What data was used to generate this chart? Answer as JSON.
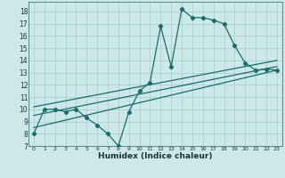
{
  "title": "",
  "xlabel": "Humidex (Indice chaleur)",
  "bg_color": "#cce8e8",
  "grid_color": "#b0d4d4",
  "line_color": "#1a6b6b",
  "xlim": [
    -0.5,
    23.5
  ],
  "ylim": [
    7,
    18.8
  ],
  "yticks": [
    7,
    8,
    9,
    10,
    11,
    12,
    13,
    14,
    15,
    16,
    17,
    18
  ],
  "xticks": [
    0,
    1,
    2,
    3,
    4,
    5,
    6,
    7,
    8,
    9,
    10,
    11,
    12,
    13,
    14,
    15,
    16,
    17,
    18,
    19,
    20,
    21,
    22,
    23
  ],
  "line1_x": [
    0,
    1,
    2,
    3,
    4,
    5,
    6,
    7,
    8,
    9,
    10,
    11,
    12,
    13,
    14,
    15,
    16,
    17,
    18,
    19,
    20,
    21,
    22,
    23
  ],
  "line1_y": [
    8.0,
    10.0,
    10.0,
    9.8,
    10.0,
    9.3,
    8.7,
    8.0,
    7.0,
    9.8,
    11.5,
    12.2,
    16.8,
    13.5,
    18.2,
    17.5,
    17.5,
    17.3,
    17.0,
    15.2,
    13.8,
    13.2,
    13.3,
    13.2
  ],
  "line2_x": [
    0,
    23
  ],
  "line2_y": [
    8.5,
    13.2
  ],
  "line3_x": [
    0,
    23
  ],
  "line3_y": [
    9.5,
    13.5
  ],
  "line4_x": [
    0,
    23
  ],
  "line4_y": [
    10.2,
    14.0
  ]
}
